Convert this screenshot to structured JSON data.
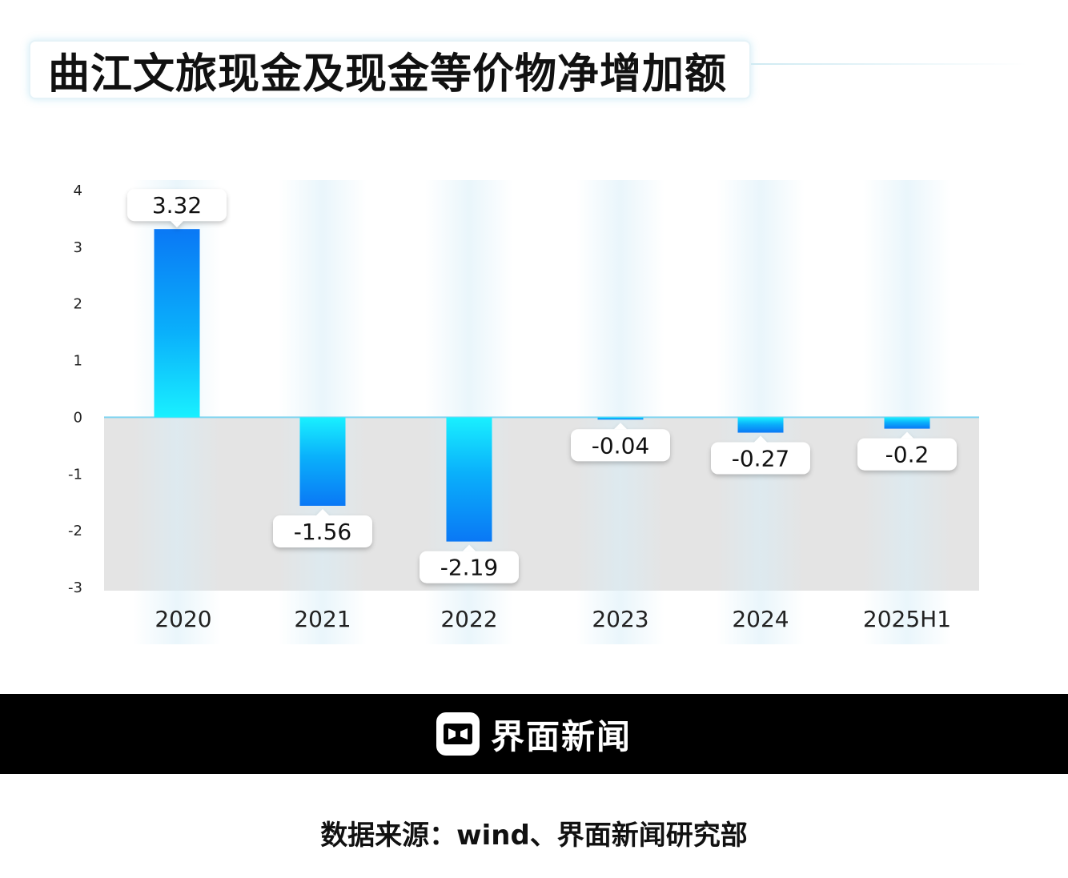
{
  "title": "曲江文旅现金及现金等价物净增加额",
  "chart_data": {
    "type": "bar",
    "categories": [
      "2020",
      "2021",
      "2022",
      "2023",
      "2024",
      "2025H1"
    ],
    "values": [
      3.32,
      -1.56,
      -2.19,
      -0.04,
      -0.27,
      -0.2
    ],
    "value_labels": [
      "3.32",
      "-1.56",
      "-2.19",
      "-0.04",
      "-0.27",
      "-0.2"
    ],
    "yticks": [
      "4",
      "3",
      "2",
      "1",
      "0",
      "-1",
      "-2",
      "-3"
    ],
    "ylim": [
      -3,
      4
    ],
    "grid": false,
    "legend": "none",
    "colors": {
      "bar_top": "#0a78f5",
      "bar_bottom": "#19f0ff",
      "negative_band": "#e4e4e4",
      "zero_line": "#7fd4f0"
    }
  },
  "footer": {
    "brand": "界面新闻"
  },
  "source": "数据来源：wind、界面新闻研究部"
}
